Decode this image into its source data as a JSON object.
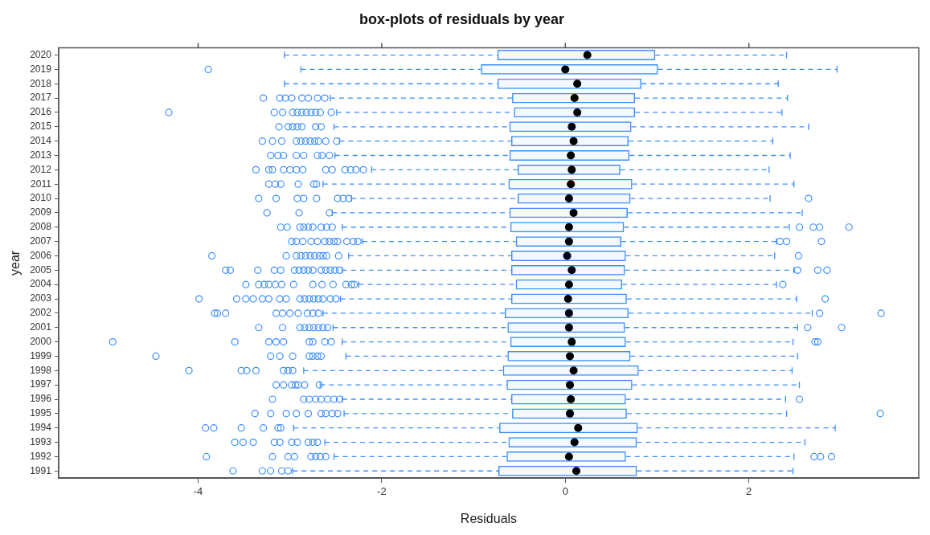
{
  "chart_data": {
    "type": "box",
    "title": "box-plots of residuals by year",
    "xlabel": "Residuals",
    "ylabel": "year",
    "orientation": "horizontal",
    "categories": [
      "2020",
      "2019",
      "2018",
      "2017",
      "2016",
      "2015",
      "2014",
      "2013",
      "2012",
      "2011",
      "2010",
      "2009",
      "2008",
      "2007",
      "2006",
      "2005",
      "2004",
      "2003",
      "2002",
      "2001",
      "2000",
      "1999",
      "1998",
      "1997",
      "1996",
      "1995",
      "1994",
      "1993",
      "1992",
      "1991"
    ],
    "color": "#3d8ef8",
    "marker": "circle",
    "line_style": "dashed",
    "grid": false,
    "legend": false,
    "xlim": [
      -5.52,
      3.85
    ],
    "xticks": [
      -4,
      -2,
      0,
      2
    ],
    "boxes": [
      {
        "low": -3.06,
        "q1": -0.74,
        "median": 0.24,
        "q3": 0.98,
        "high": 2.41
      },
      {
        "low": -2.88,
        "q1": -0.92,
        "median": 0,
        "q3": 1.01,
        "high": 2.96,
        "outliers": [
          -3.89
        ]
      },
      {
        "low": -3.06,
        "q1": -0.74,
        "median": 0.13,
        "q3": 0.83,
        "high": 2.32
      },
      {
        "low": -2.56,
        "q1": -0.58,
        "median": 0.1,
        "q3": 0.76,
        "high": 2.42,
        "outliers": [
          -3.29,
          -3.11,
          -3.05,
          -2.98,
          -2.87,
          -2.8,
          -2.7,
          -2.62
        ]
      },
      {
        "low": -2.49,
        "q1": -0.56,
        "median": 0.13,
        "q3": 0.76,
        "high": 2.36,
        "outliers": [
          -4.32,
          -3.17,
          -3.08,
          -2.97,
          -2.92,
          -2.87,
          -2.82,
          -2.77,
          -2.72,
          -2.67,
          -2.55
        ]
      },
      {
        "low": -2.52,
        "q1": -0.61,
        "median": 0.07,
        "q3": 0.72,
        "high": 2.65,
        "outliers": [
          -3.12,
          -3.02,
          -2.97,
          -2.92,
          -2.87,
          -2.72,
          -2.66
        ]
      },
      {
        "low": -2.46,
        "q1": -0.59,
        "median": 0.09,
        "q3": 0.69,
        "high": 2.26,
        "outliers": [
          -3.3,
          -3.19,
          -3.09,
          -2.93,
          -2.88,
          -2.83,
          -2.78,
          -2.73,
          -2.69,
          -2.61,
          -2.49
        ]
      },
      {
        "low": -2.51,
        "q1": -0.61,
        "median": 0.06,
        "q3": 0.7,
        "high": 2.45,
        "outliers": [
          -3.21,
          -3.13,
          -3.07,
          -2.93,
          -2.85,
          -2.7,
          -2.65,
          -2.57
        ]
      },
      {
        "low": -2.11,
        "q1": -0.52,
        "median": 0.07,
        "q3": 0.6,
        "high": 2.22,
        "outliers": [
          -3.37,
          -3.23,
          -3.19,
          -3.07,
          -3.0,
          -2.93,
          -2.86,
          -2.61,
          -2.54,
          -2.4,
          -2.34,
          -2.28,
          -2.2
        ]
      },
      {
        "low": -2.64,
        "q1": -0.62,
        "median": 0.06,
        "q3": 0.73,
        "high": 2.49,
        "outliers": [
          -3.23,
          -3.16,
          -3.1,
          -2.91,
          -2.74,
          -2.71
        ]
      },
      {
        "low": -2.33,
        "q1": -0.52,
        "median": 0.04,
        "q3": 0.71,
        "high": 2.23,
        "outliers": [
          -3.34,
          -3.15,
          -2.92,
          -2.85,
          -2.71,
          -2.48,
          -2.42,
          -2.36,
          2.65
        ]
      },
      {
        "low": -2.54,
        "q1": -0.61,
        "median": 0.09,
        "q3": 0.68,
        "high": 2.58,
        "outliers": [
          -3.25,
          -2.9,
          -2.57
        ]
      },
      {
        "low": -2.43,
        "q1": -0.6,
        "median": 0.04,
        "q3": 0.64,
        "high": 2.44,
        "outliers": [
          -3.1,
          -3.03,
          -2.89,
          -2.85,
          -2.8,
          -2.75,
          -2.66,
          -2.6,
          -2.54,
          2.55,
          2.7,
          2.77,
          3.09
        ]
      },
      {
        "low": -2.21,
        "q1": -0.54,
        "median": 0.04,
        "q3": 0.61,
        "high": 2.3,
        "outliers": [
          -2.98,
          -2.93,
          -2.86,
          -2.77,
          -2.7,
          -2.62,
          -2.57,
          -2.52,
          -2.48,
          -2.38,
          -2.31,
          -2.26,
          2.34,
          2.41,
          2.79
        ]
      },
      {
        "low": -2.36,
        "q1": -0.59,
        "median": 0.02,
        "q3": 0.66,
        "high": 2.28,
        "outliers": [
          -3.85,
          -3.04,
          -2.93,
          -2.88,
          -2.83,
          -2.78,
          -2.73,
          -2.68,
          -2.64,
          -2.6,
          -2.47,
          2.54
        ]
      },
      {
        "low": -2.43,
        "q1": -0.59,
        "median": 0.07,
        "q3": 0.65,
        "high": 2.49,
        "outliers": [
          -3.7,
          -3.65,
          -3.35,
          -3.17,
          -3.1,
          -2.95,
          -2.9,
          -2.85,
          -2.8,
          -2.75,
          -2.66,
          -2.61,
          -2.56,
          -2.51,
          -2.46,
          2.53,
          2.75,
          2.85
        ]
      },
      {
        "low": -2.25,
        "q1": -0.54,
        "median": 0.04,
        "q3": 0.62,
        "high": 2.3,
        "outliers": [
          -3.48,
          -3.34,
          -3.28,
          -3.23,
          -3.16,
          -3.09,
          -2.96,
          -2.75,
          -2.65,
          -2.53,
          -2.39,
          -2.33,
          -2.3,
          2.37
        ]
      },
      {
        "low": -2.45,
        "q1": -0.59,
        "median": 0.03,
        "q3": 0.67,
        "high": 2.52,
        "outliers": [
          -3.99,
          -3.58,
          -3.48,
          -3.4,
          -3.3,
          -3.23,
          -3.11,
          -3.04,
          -2.89,
          -2.84,
          -2.79,
          -2.74,
          -2.69,
          -2.64,
          -2.56,
          -2.5,
          2.83
        ]
      },
      {
        "low": -2.64,
        "q1": -0.66,
        "median": 0.04,
        "q3": 0.69,
        "high": 2.69,
        "outliers": [
          -3.82,
          -3.79,
          -3.7,
          -3.15,
          -3.08,
          -3.0,
          -2.91,
          -2.81,
          -2.75,
          -2.69,
          2.77,
          3.44
        ]
      },
      {
        "low": -2.53,
        "q1": -0.63,
        "median": 0.04,
        "q3": 0.65,
        "high": 2.53,
        "outliers": [
          -3.34,
          -3.08,
          -2.89,
          -2.84,
          -2.79,
          -2.74,
          -2.69,
          -2.64,
          -2.59,
          2.64,
          3.01
        ]
      },
      {
        "low": -2.43,
        "q1": -0.6,
        "median": 0.07,
        "q3": 0.66,
        "high": 2.48,
        "outliers": [
          -4.93,
          -3.6,
          -3.23,
          -3.15,
          -3.07,
          -2.79,
          -2.75,
          -2.62,
          -2.55,
          2.72,
          2.75
        ]
      },
      {
        "low": -2.39,
        "q1": -0.63,
        "median": 0.05,
        "q3": 0.71,
        "high": 2.53,
        "outliers": [
          -4.46,
          -3.21,
          -3.11,
          -2.97,
          -2.79,
          -2.75,
          -2.7,
          -2.66
        ]
      },
      {
        "low": -2.85,
        "q1": -0.68,
        "median": 0.09,
        "q3": 0.8,
        "high": 2.47,
        "outliers": [
          -4.1,
          -3.53,
          -3.47,
          -3.37,
          -3.07,
          -3.02,
          -2.97
        ]
      },
      {
        "low": -2.67,
        "q1": -0.64,
        "median": 0.05,
        "q3": 0.73,
        "high": 2.55,
        "outliers": [
          -3.15,
          -3.07,
          -2.98,
          -2.94,
          -2.91,
          -2.84,
          -2.68
        ]
      },
      {
        "low": -2.43,
        "q1": -0.59,
        "median": 0.06,
        "q3": 0.66,
        "high": 2.4,
        "outliers": [
          -3.19,
          -2.85,
          -2.79,
          -2.72,
          -2.66,
          -2.59,
          -2.52,
          -2.46,
          2.55
        ]
      },
      {
        "low": -2.41,
        "q1": -0.58,
        "median": 0.05,
        "q3": 0.67,
        "high": 2.41,
        "outliers": [
          -3.38,
          -3.21,
          -3.04,
          -2.93,
          -2.8,
          -2.66,
          -2.61,
          -2.54,
          -2.48,
          3.43
        ]
      },
      {
        "low": -2.96,
        "q1": -0.72,
        "median": 0.14,
        "q3": 0.79,
        "high": 2.94,
        "outliers": [
          -3.92,
          -3.83,
          -3.53,
          -3.29,
          -3.13,
          -3.1
        ]
      },
      {
        "low": -2.62,
        "q1": -0.62,
        "median": 0.1,
        "q3": 0.78,
        "high": 2.61,
        "outliers": [
          -3.6,
          -3.51,
          -3.4,
          -3.17,
          -3.11,
          -2.98,
          -2.92,
          -2.8,
          -2.75,
          -2.7
        ]
      },
      {
        "low": -2.52,
        "q1": -0.64,
        "median": 0.04,
        "q3": 0.66,
        "high": 2.49,
        "outliers": [
          -3.91,
          -3.19,
          -3.02,
          -2.95,
          -2.77,
          -2.72,
          -2.67,
          -2.61,
          2.71,
          2.78,
          2.9
        ]
      },
      {
        "low": -2.97,
        "q1": -0.73,
        "median": 0.12,
        "q3": 0.78,
        "high": 2.48,
        "outliers": [
          -3.62,
          -3.3,
          -3.21,
          -3.09,
          -3.02
        ]
      }
    ]
  }
}
